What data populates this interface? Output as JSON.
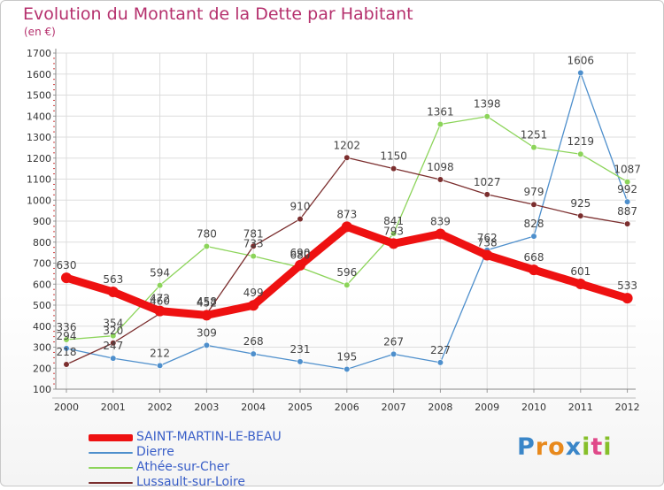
{
  "title": "Evolution du Montant de la Dette par Habitant",
  "unit": "(en €)",
  "logo": {
    "letters": [
      "P",
      "r",
      "o",
      "x",
      "i",
      "t",
      "i"
    ],
    "colors": [
      "#3a86c8",
      "#e8891c",
      "#e8891c",
      "#3a86c8",
      "#86bf2a",
      "#e04a8a",
      "#86bf2a"
    ]
  },
  "chart_data": {
    "type": "line",
    "x": [
      "2000",
      "2001",
      "2002",
      "2003",
      "2004",
      "2005",
      "2006",
      "2007",
      "2008",
      "2009",
      "2010",
      "2011",
      "2012"
    ],
    "ylim": [
      100,
      1700
    ],
    "yticks": [
      100,
      200,
      300,
      400,
      500,
      600,
      700,
      800,
      900,
      1000,
      1100,
      1200,
      1300,
      1400,
      1500,
      1600,
      1700
    ],
    "grid": true,
    "legend_position": "bottom-left",
    "series": [
      {
        "name": "SAINT-MARTIN-LE-BEAU",
        "color": "#ee1111",
        "width": 9,
        "values": [
          630,
          563,
          472,
          452,
          499,
          690,
          873,
          793,
          839,
          738,
          668,
          601,
          533
        ],
        "labels": [
          "630",
          "563",
          "472",
          "452",
          "499",
          "690",
          "873",
          "793",
          "839",
          "738",
          "668",
          "601",
          "533"
        ]
      },
      {
        "name": "Dierre",
        "color": "#4e8fcc",
        "width": 1.3,
        "values": [
          294,
          247,
          212,
          309,
          268,
          231,
          195,
          267,
          227,
          762,
          828,
          1606,
          992
        ],
        "labels": [
          "294",
          "247",
          "212",
          "309",
          "268",
          "231",
          "195",
          "267",
          "227",
          "762",
          "828",
          "1606",
          "992"
        ]
      },
      {
        "name": "Athée-sur-Cher",
        "color": "#8cd45a",
        "width": 1.3,
        "values": [
          336,
          354,
          594,
          780,
          733,
          680,
          596,
          841,
          1361,
          1398,
          1251,
          1219,
          1087
        ],
        "labels": [
          "336",
          "354",
          "594",
          "780",
          "733",
          "680",
          "596",
          "841",
          "1361",
          "1398",
          "1251",
          "1219",
          "1087"
        ]
      },
      {
        "name": "Lussault-sur-Loire",
        "color": "#7b2e2e",
        "width": 1.3,
        "values": [
          218,
          320,
          460,
          458,
          781,
          910,
          1202,
          1150,
          1098,
          1027,
          979,
          925,
          887
        ],
        "labels": [
          "218",
          "320",
          "460",
          "458",
          "781",
          "910",
          "1202",
          "1150",
          "1098",
          "1027",
          "979",
          "925",
          "887"
        ]
      }
    ]
  }
}
